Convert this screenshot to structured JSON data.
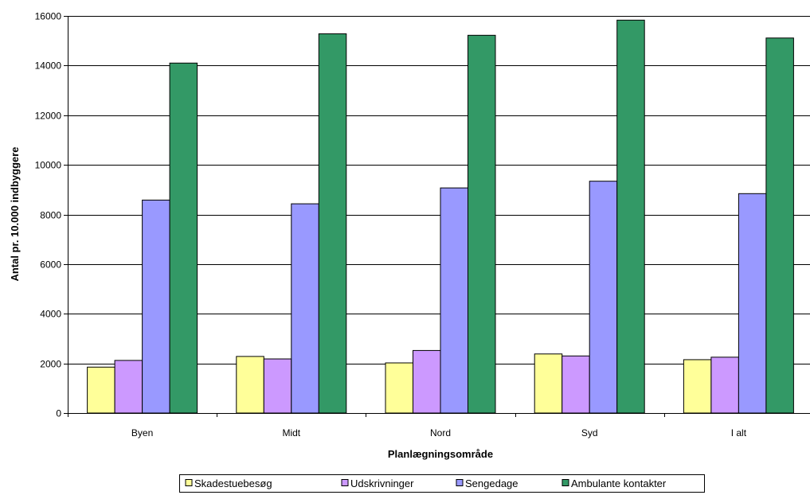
{
  "chart_data": {
    "type": "bar",
    "categories": [
      "Byen",
      "Midt",
      "Nord",
      "Syd",
      "I alt"
    ],
    "series": [
      {
        "name": "Skadestuebesøg",
        "color": "#FFFF99",
        "values": [
          1850,
          2280,
          2020,
          2380,
          2150
        ]
      },
      {
        "name": "Udskrivninger",
        "color": "#CC99FF",
        "values": [
          2120,
          2180,
          2520,
          2300,
          2250
        ]
      },
      {
        "name": "Sengedage",
        "color": "#9999FF",
        "values": [
          8580,
          8430,
          9070,
          9340,
          8840
        ]
      },
      {
        "name": "Ambulante kontakter",
        "color": "#339966",
        "values": [
          14100,
          15280,
          15220,
          15830,
          15110
        ]
      }
    ],
    "xlabel": "Planlægningsområde",
    "ylabel": "Antal pr. 10.000 indbyggere",
    "ylim": [
      0,
      16000
    ],
    "yticks": [
      "0",
      "2000",
      "4000",
      "6000",
      "8000",
      "10000",
      "12000",
      "14000",
      "16000"
    ],
    "grid": true,
    "legend_position": "bottom"
  }
}
